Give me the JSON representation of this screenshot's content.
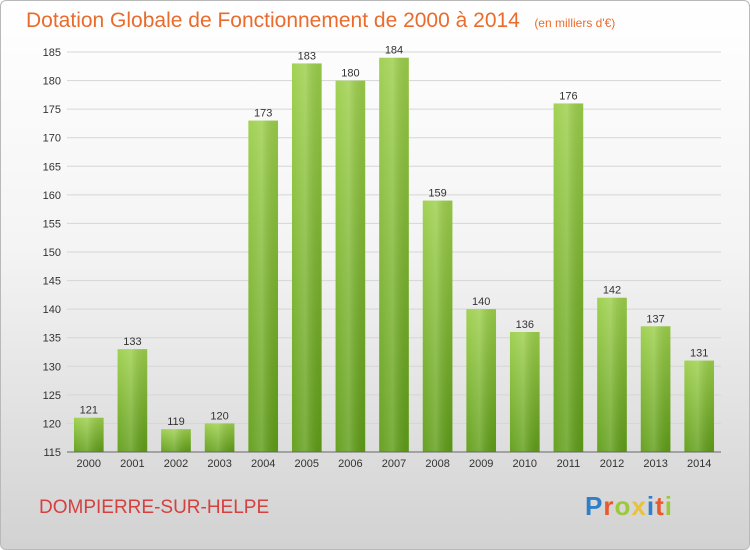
{
  "header": {
    "title": "Dotation Globale de Fonctionnement de 2000 à 2014",
    "subtitle": "(en milliers d'€)"
  },
  "footer": {
    "commune": "DOMPIERRE-SUR-HELPE",
    "logo": [
      "P",
      "r",
      "o",
      "x",
      "i",
      "t",
      "i"
    ]
  },
  "colors": {
    "bar_top": "#9ccf4a",
    "bar_bottom": "#5f9d17",
    "title": "#ea6b2c",
    "commune": "#d54040"
  },
  "chart_data": {
    "type": "bar",
    "title": "Dotation Globale de Fonctionnement de 2000 à 2014",
    "subtitle": "(en milliers d'€)",
    "xlabel": "",
    "ylabel": "",
    "categories": [
      "2000",
      "2001",
      "2002",
      "2003",
      "2004",
      "2005",
      "2006",
      "2007",
      "2008",
      "2009",
      "2010",
      "2011",
      "2012",
      "2013",
      "2014"
    ],
    "values": [
      121,
      133,
      119,
      120,
      173,
      183,
      180,
      184,
      159,
      140,
      136,
      176,
      142,
      137,
      131
    ],
    "ylim": [
      115,
      185
    ],
    "yticks": [
      115,
      120,
      125,
      130,
      135,
      140,
      145,
      150,
      155,
      160,
      165,
      170,
      175,
      180,
      185
    ],
    "grid": true,
    "legend": "none",
    "data_labels": true
  }
}
